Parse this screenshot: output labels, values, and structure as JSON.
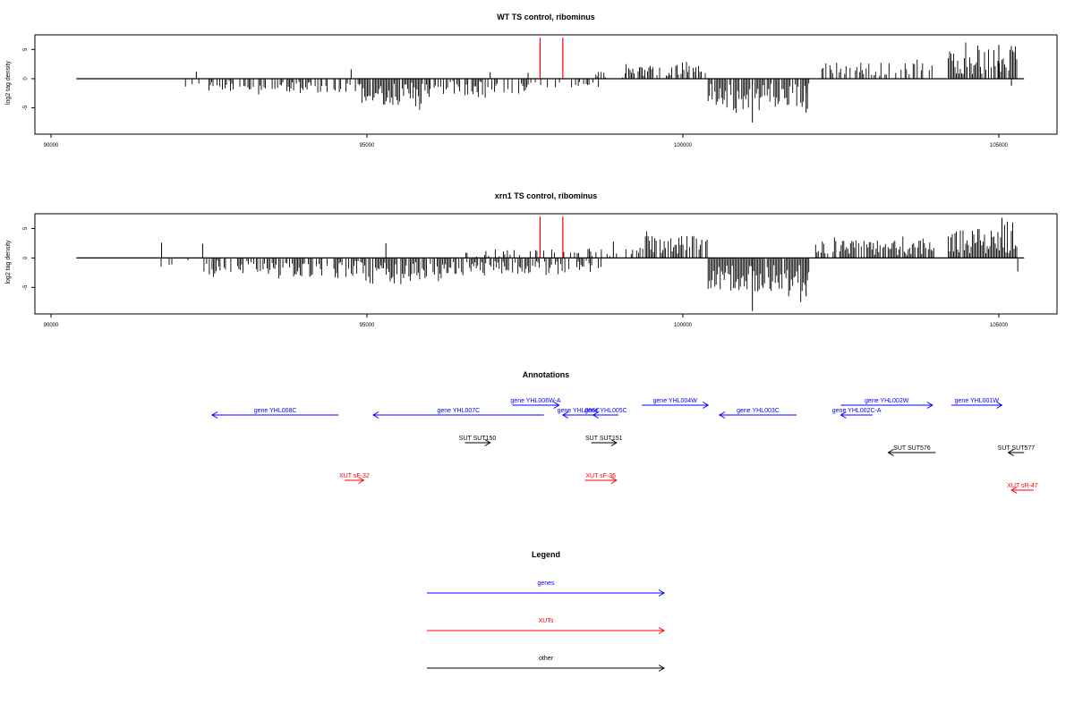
{
  "chart_data": [
    {
      "type": "bar",
      "title": "WT TS control, ribominus",
      "ylabel": "log2 tag density",
      "xlim": [
        90000,
        106000
      ],
      "ylim": [
        -9.5,
        7.5
      ],
      "x_ticks": [
        90000,
        95000,
        100000,
        105000
      ],
      "x_tick_labels": [
        "90000",
        "95000",
        "100000",
        "105000"
      ],
      "y_ticks": [
        -5,
        0,
        5
      ],
      "y_tick_labels": [
        "-5",
        "0",
        "5"
      ],
      "baseline": {
        "from": 90400,
        "to": 105400,
        "value": 0
      },
      "markers": [
        {
          "x": 97740,
          "value": 7,
          "color": "#ff0000"
        },
        {
          "x": 98100,
          "value": 7,
          "color": "#ff0000"
        }
      ],
      "bar_color": "#000000",
      "segments": [
        {
          "from": 92000,
          "to": 92400,
          "value": -1.5,
          "density": 0.2
        },
        {
          "from": 92500,
          "to": 93500,
          "value": -2.2,
          "density": 0.45
        },
        {
          "from": 93500,
          "to": 94900,
          "value": -2.5,
          "density": 0.55
        },
        {
          "from": 94900,
          "to": 96000,
          "value": -4.5,
          "density": 0.8
        },
        {
          "from": 96000,
          "to": 97600,
          "value": -2.8,
          "density": 0.6
        },
        {
          "from": 97600,
          "to": 98800,
          "value": -1.5,
          "density": 0.35
        },
        {
          "from": 98600,
          "to": 99100,
          "value": 1.5,
          "density": 0.4
        },
        {
          "from": 99100,
          "to": 100400,
          "value": 3.0,
          "density": 0.55
        },
        {
          "from": 100400,
          "to": 102000,
          "value": -5.5,
          "density": 0.85
        },
        {
          "from": 102200,
          "to": 104000,
          "value": 2.8,
          "density": 0.45
        },
        {
          "from": 104200,
          "to": 105300,
          "value": 5.0,
          "density": 0.9
        }
      ],
      "spikes": [
        {
          "x": 92300,
          "value": 1.2
        },
        {
          "x": 94750,
          "value": 1.6
        },
        {
          "x": 96950,
          "value": 1.1
        },
        {
          "x": 97550,
          "value": 1.0
        },
        {
          "x": 101100,
          "value": -7.5
        },
        {
          "x": 101950,
          "value": -5.8
        },
        {
          "x": 105000,
          "value": 5.8
        },
        {
          "x": 105200,
          "value": -1.2
        }
      ]
    },
    {
      "type": "bar",
      "title": "xrn1 TS control, ribominus",
      "ylabel": "log2 tag density",
      "xlim": [
        90000,
        106000
      ],
      "ylim": [
        -9.5,
        7.5
      ],
      "x_ticks": [
        90000,
        95000,
        100000,
        105000
      ],
      "x_tick_labels": [
        "90000",
        "95000",
        "100000",
        "105000"
      ],
      "y_ticks": [
        -5,
        0,
        5
      ],
      "y_tick_labels": [
        "-5",
        "0",
        "5"
      ],
      "baseline": {
        "from": 90400,
        "to": 105400,
        "value": 0
      },
      "markers": [
        {
          "x": 97740,
          "value": 7,
          "color": "#ff0000"
        },
        {
          "x": 98100,
          "value": 7,
          "color": "#ff0000"
        }
      ],
      "bar_color": "#000000",
      "segments": [
        {
          "from": 91700,
          "to": 92400,
          "value": -1.5,
          "density": 0.2
        },
        {
          "from": 92400,
          "to": 93500,
          "value": -2.8,
          "density": 0.6
        },
        {
          "from": 93500,
          "to": 94900,
          "value": -3.5,
          "density": 0.65
        },
        {
          "from": 94900,
          "to": 96200,
          "value": -4.5,
          "density": 0.85
        },
        {
          "from": 96200,
          "to": 97600,
          "value": -3.0,
          "density": 0.7
        },
        {
          "from": 97600,
          "to": 98800,
          "value": -2.5,
          "density": 0.5
        },
        {
          "from": 96500,
          "to": 98800,
          "value": 1.5,
          "density": 0.3
        },
        {
          "from": 98800,
          "to": 99300,
          "value": 1.5,
          "density": 0.4
        },
        {
          "from": 99300,
          "to": 100400,
          "value": 3.8,
          "density": 0.8
        },
        {
          "from": 100400,
          "to": 102000,
          "value": -5.8,
          "density": 0.95
        },
        {
          "from": 102100,
          "to": 104000,
          "value": 3.0,
          "density": 0.75
        },
        {
          "from": 104200,
          "to": 105300,
          "value": 5.0,
          "density": 0.95
        }
      ],
      "spikes": [
        {
          "x": 91750,
          "value": 2.6
        },
        {
          "x": 92400,
          "value": 2.4
        },
        {
          "x": 95300,
          "value": 2.5
        },
        {
          "x": 98900,
          "value": 2.8
        },
        {
          "x": 101100,
          "value": -9.0
        },
        {
          "x": 101950,
          "value": -6.5
        },
        {
          "x": 105050,
          "value": 6.8
        },
        {
          "x": 105300,
          "value": -2.3
        }
      ]
    }
  ],
  "annotations": {
    "title": "Annotations",
    "xlim": [
      90000,
      106000
    ],
    "features": [
      {
        "label": "gene YHL008C",
        "type": "gene",
        "start": 94550,
        "end": 92550,
        "row": 1
      },
      {
        "label": "gene YHL007C",
        "type": "gene",
        "start": 97800,
        "end": 95100,
        "row": 1
      },
      {
        "label": "gene YHL006W-A",
        "type": "gene",
        "start": 97300,
        "end": 98040,
        "row": 0
      },
      {
        "label": "gene YHL006C",
        "type": "gene",
        "start": 98600,
        "end": 98100,
        "row": 1
      },
      {
        "label": "gene YHL005C",
        "type": "gene",
        "start": 98980,
        "end": 98580,
        "row": 1
      },
      {
        "label": "gene YHL004W",
        "type": "gene",
        "start": 99350,
        "end": 100400,
        "row": 0
      },
      {
        "label": "gene YHL003C",
        "type": "gene",
        "start": 101800,
        "end": 100580,
        "row": 1
      },
      {
        "label": "gene YHL002W",
        "type": "gene",
        "start": 102500,
        "end": 103950,
        "row": 0
      },
      {
        "label": "gene YHL002C-A",
        "type": "gene",
        "start": 103000,
        "end": 102500,
        "row": 1
      },
      {
        "label": "gene YHL001W",
        "type": "gene",
        "start": 104250,
        "end": 105050,
        "row": 0
      },
      {
        "label": "SUT SUT150",
        "type": "other",
        "start": 96550,
        "end": 96950,
        "row": 2
      },
      {
        "label": "SUT SUT151",
        "type": "other",
        "start": 98550,
        "end": 98950,
        "row": 2
      },
      {
        "label": "SUT SUT576",
        "type": "other",
        "start": 104000,
        "end": 103250,
        "row": 3
      },
      {
        "label": "SUT SUT577",
        "type": "other",
        "start": 105400,
        "end": 105150,
        "row": 3
      },
      {
        "label": "XUT sF-32",
        "type": "xut",
        "start": 94650,
        "end": 94950,
        "row": 4
      },
      {
        "label": "XUT sF-36",
        "type": "xut",
        "start": 98450,
        "end": 98950,
        "row": 4
      },
      {
        "label": "XUT sR-47",
        "type": "xut",
        "start": 105550,
        "end": 105200,
        "row": 5
      }
    ]
  },
  "legend": {
    "title": "Legend",
    "items": [
      {
        "label": "genes",
        "type": "gene"
      },
      {
        "label": "XUTs",
        "type": "xut"
      },
      {
        "label": "other",
        "type": "other"
      }
    ]
  },
  "colors": {
    "gene": "#0000ff",
    "xut": "#ff0000",
    "other": "#000000",
    "axis": "#000000"
  }
}
